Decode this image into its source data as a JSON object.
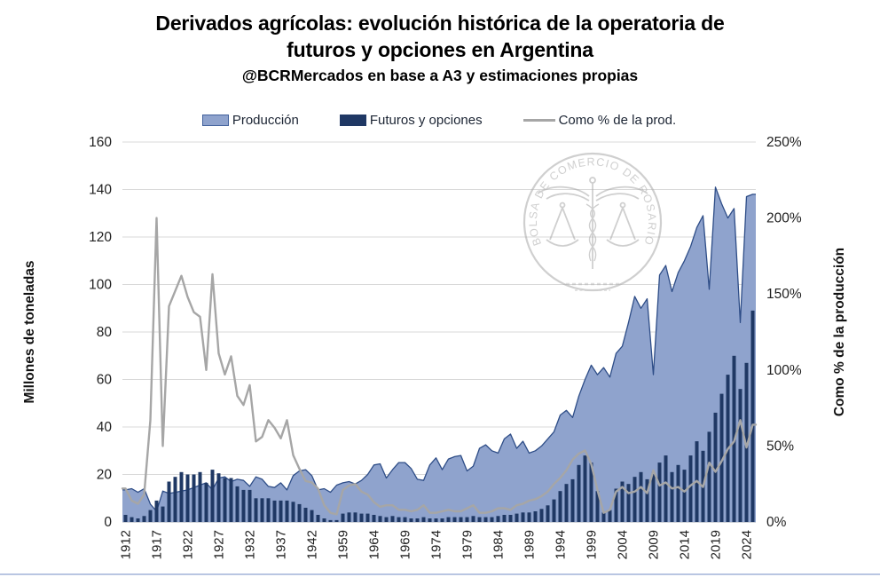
{
  "header": {
    "title_line1": "Derivados agrícolas: evolución histórica de la operatoria de",
    "title_line2": "futuros y opciones en Argentina",
    "subtitle": "@BCRMercados en base a A3 y estimaciones propias"
  },
  "legend": {
    "items": [
      {
        "label": "Producción",
        "type": "area",
        "color": "#8fa3cd",
        "border": "#41619c"
      },
      {
        "label": "Futuros y opciones",
        "type": "bar",
        "color": "#1f3864"
      },
      {
        "label": "Como % de la prod.",
        "type": "line",
        "color": "#a6a6a6"
      }
    ]
  },
  "axes": {
    "left_title": "Millones de toneladas",
    "right_title": "Como % de la producción",
    "left_ticks": [
      0,
      20,
      40,
      60,
      80,
      100,
      120,
      140,
      160
    ],
    "right_ticks": [
      "0%",
      "50%",
      "100%",
      "150%",
      "200%",
      "250%"
    ],
    "x_ticks": [
      1912,
      1917,
      1922,
      1927,
      1932,
      1937,
      1942,
      1959,
      1964,
      1969,
      1974,
      1979,
      1984,
      1989,
      1994,
      1999,
      2004,
      2009,
      2014,
      2019,
      2024
    ]
  },
  "watermark": {
    "text": "BOLSA DE COMERCIO DE ROSARIO"
  },
  "colors": {
    "area_fill": "#8fa3cd",
    "area_stroke": "#2e4d87",
    "bar": "#1f3864",
    "pct_line": "#a6a6a6",
    "grid": "#d9d9d9",
    "axis_line": "#9fa6b0",
    "tick_text": "#1f1f1f"
  },
  "chart_data": {
    "type": "combo-area-bar-line",
    "title": "Derivados agrícolas: evolución histórica de la operatoria de futuros y opciones en Argentina",
    "subtitle": "@BCRMercados en base a A3 y estimaciones propias",
    "x_gap_note": "years 1947-1958 absent from axis (market closure gap between 1942 and 1959 tick labels)",
    "x": [
      1912,
      1913,
      1914,
      1915,
      1916,
      1917,
      1918,
      1919,
      1920,
      1921,
      1922,
      1923,
      1924,
      1925,
      1926,
      1927,
      1928,
      1929,
      1930,
      1931,
      1932,
      1933,
      1934,
      1935,
      1936,
      1937,
      1938,
      1939,
      1940,
      1941,
      1942,
      1943,
      1944,
      1945,
      1946,
      1959,
      1960,
      1961,
      1962,
      1963,
      1964,
      1965,
      1966,
      1967,
      1968,
      1969,
      1970,
      1971,
      1972,
      1973,
      1974,
      1975,
      1976,
      1977,
      1978,
      1979,
      1980,
      1981,
      1982,
      1983,
      1984,
      1985,
      1986,
      1987,
      1988,
      1989,
      1990,
      1991,
      1992,
      1993,
      1994,
      1995,
      1996,
      1997,
      1998,
      1999,
      2000,
      2001,
      2002,
      2003,
      2004,
      2005,
      2006,
      2007,
      2008,
      2009,
      2010,
      2011,
      2012,
      2013,
      2014,
      2015,
      2016,
      2017,
      2018,
      2019,
      2020,
      2021,
      2022,
      2023,
      2024,
      2025
    ],
    "left_axis": {
      "label": "Millones de toneladas",
      "min": 0,
      "max": 160,
      "step": 20
    },
    "right_axis": {
      "label": "Como % de la producción",
      "min": 0,
      "max": 250,
      "step": 50,
      "format": "percent"
    },
    "legend_position": "top",
    "grid": "horizontal-only",
    "series": [
      {
        "name": "Producción",
        "type": "area",
        "axis": "left",
        "unit": "millones de toneladas",
        "color": "#8fa3cd",
        "values": [
          13.5,
          14,
          12.5,
          14,
          7.5,
          4.5,
          13,
          12,
          12.5,
          13,
          13.5,
          14.5,
          15.5,
          16.5,
          13.5,
          18.5,
          19,
          17,
          18,
          17.5,
          15,
          19,
          18,
          15,
          14.5,
          16.5,
          13.5,
          19.5,
          21.5,
          22,
          19.5,
          13.5,
          14,
          12.5,
          15.5,
          16.5,
          17,
          16,
          17.5,
          20,
          24,
          24.5,
          18.5,
          22,
          25,
          25,
          22.5,
          18,
          17.5,
          24,
          27,
          22,
          26.5,
          27.5,
          28,
          21.5,
          23.5,
          31,
          32.5,
          30,
          29,
          35,
          37,
          31,
          34,
          29,
          30,
          32,
          35,
          38,
          45,
          47,
          44,
          53,
          60,
          66,
          62,
          65,
          61,
          71,
          74,
          84,
          95,
          90,
          94,
          62,
          104,
          108,
          97,
          105,
          110,
          116,
          124,
          129,
          98,
          141,
          134,
          128,
          132,
          84,
          137,
          138
        ]
      },
      {
        "name": "Futuros y opciones",
        "type": "bar",
        "axis": "left",
        "unit": "millones de toneladas",
        "color": "#1f3864",
        "values": [
          3,
          2,
          1.5,
          2.5,
          5,
          9,
          6.5,
          17,
          19,
          21,
          20,
          20,
          21,
          16.5,
          22,
          20.5,
          18.5,
          18.5,
          15,
          13.5,
          13.5,
          10,
          10,
          10,
          9,
          9,
          9,
          8.5,
          7.5,
          6,
          5,
          3,
          1.5,
          0.8,
          0.8,
          3.5,
          4,
          4,
          3.5,
          3.5,
          3,
          2.5,
          2,
          2.5,
          2,
          2,
          1.5,
          1.5,
          2,
          1.5,
          1.5,
          1.5,
          2,
          2,
          2,
          2,
          2.5,
          2,
          2,
          2,
          2.5,
          3,
          3,
          3.5,
          4,
          4,
          4.5,
          5.5,
          7,
          9.5,
          13,
          16,
          18,
          24,
          28,
          25,
          13,
          4,
          5,
          14,
          17,
          16,
          19,
          21,
          18,
          21,
          25,
          28,
          21,
          24,
          22,
          28,
          34,
          30,
          38,
          46,
          54,
          62,
          70,
          56,
          67,
          89
        ]
      },
      {
        "name": "Como % de la prod.",
        "type": "line",
        "axis": "right",
        "unit": "%",
        "color": "#a6a6a6",
        "values": [
          22,
          14,
          12,
          18,
          67,
          200,
          50,
          142,
          152,
          162,
          148,
          138,
          135,
          100,
          163,
          111,
          97,
          109,
          83,
          77,
          90,
          53,
          56,
          67,
          62,
          55,
          67,
          44,
          35,
          27,
          26,
          22,
          11,
          6,
          5,
          21,
          24,
          25,
          20,
          18,
          13,
          10,
          11,
          11,
          8,
          8,
          7,
          8,
          11,
          6,
          6,
          7,
          8,
          7,
          7,
          9,
          11,
          6,
          6,
          7,
          9,
          9,
          8,
          11,
          12,
          14,
          15,
          17,
          20,
          25,
          29,
          34,
          41,
          45,
          47,
          38,
          21,
          6,
          8,
          20,
          23,
          19,
          20,
          23,
          19,
          34,
          24,
          26,
          22,
          23,
          20,
          24,
          27,
          23,
          39,
          33,
          40,
          48,
          53,
          67,
          49,
          64
        ]
      }
    ]
  }
}
